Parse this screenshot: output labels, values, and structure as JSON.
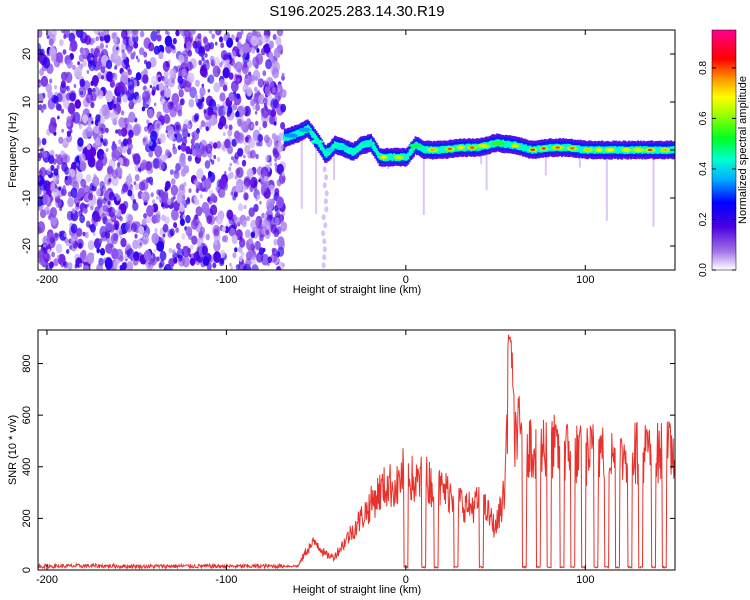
{
  "title": "S196.2025.283.14.30.R19",
  "colors": {
    "snr_line": "#e8312b",
    "spectrogram_noise": "#8a3ee8",
    "axis": "#000000"
  },
  "chart_data": [
    {
      "type": "heatmap",
      "xlabel": "Height of straight line (km)",
      "ylabel": "Frequency (Hz)",
      "xlim": [
        -205,
        150
      ],
      "ylim": [
        -25,
        25
      ],
      "x_ticks": [
        -200,
        -100,
        0,
        100
      ],
      "y_ticks": [
        -20,
        -10,
        0,
        10,
        20
      ],
      "colorbar": {
        "label": "Normalized spectral amplitude",
        "range": [
          0,
          0.95
        ],
        "ticks": [
          "0.0",
          "0.2",
          "0.4",
          "0.6",
          "0.8"
        ],
        "tick_values": [
          0.0,
          0.2,
          0.4,
          0.6,
          0.8
        ],
        "colormap": "rainbow (white → purple → blue → cyan → green → yellow → red → magenta)"
      },
      "noise_region_x": [
        -205,
        -68
      ],
      "ridge": {
        "x": [
          -68,
          -60,
          -55,
          -50,
          -45,
          -40,
          -35,
          -30,
          -25,
          -20,
          -15,
          -10,
          -5,
          0,
          5,
          10,
          15,
          20,
          30,
          40,
          50,
          60,
          70,
          80,
          90,
          100,
          110,
          120,
          130,
          140,
          150
        ],
        "freq_hz": [
          2.5,
          3.5,
          4.5,
          2.0,
          -1.0,
          1.0,
          0.5,
          -0.5,
          1.0,
          1.5,
          -1.5,
          -1.5,
          -1.5,
          -1.5,
          1.0,
          0.0,
          0.0,
          0.0,
          0.5,
          0.5,
          1.5,
          1.0,
          0.0,
          0.5,
          0.5,
          0.0,
          0.0,
          0.0,
          0.0,
          0.0,
          0.0
        ],
        "amplitude": [
          0.45,
          0.45,
          0.45,
          0.55,
          0.55,
          0.55,
          0.55,
          0.55,
          0.55,
          0.6,
          0.75,
          0.85,
          0.85,
          0.8,
          0.6,
          0.9,
          0.9,
          0.9,
          0.9,
          0.9,
          0.7,
          0.9,
          0.9,
          0.9,
          0.9,
          0.9,
          0.9,
          0.9,
          0.9,
          0.9,
          0.9
        ]
      }
    },
    {
      "type": "line",
      "xlabel": "Height of straight line (km)",
      "ylabel": "SNR (10 * v/v)",
      "xlim": [
        -205,
        150
      ],
      "ylim": [
        0,
        930
      ],
      "x_ticks": [
        -200,
        -100,
        0,
        100
      ],
      "y_ticks": [
        0,
        200,
        400,
        600,
        800
      ],
      "series": [
        {
          "x": [
            -205,
            -190,
            -175,
            -160,
            -145,
            -130,
            -115,
            -100,
            -85,
            -70,
            -60,
            -55,
            -50,
            -45,
            -40,
            -35,
            -30,
            -25,
            -20,
            -15,
            -10,
            -5,
            0,
            5,
            10,
            15,
            20,
            25,
            30,
            35,
            40,
            45,
            50,
            55,
            58,
            60,
            65,
            70,
            75,
            80,
            85,
            90,
            95,
            100,
            105,
            110,
            115,
            120,
            125,
            130,
            135,
            140,
            145,
            150
          ],
          "y": [
            15,
            15,
            16,
            15,
            14,
            15,
            15,
            14,
            15,
            15,
            15,
            80,
            110,
            60,
            50,
            100,
            150,
            200,
            250,
            300,
            330,
            320,
            400,
            330,
            360,
            330,
            310,
            300,
            270,
            240,
            260,
            230,
            160,
            300,
            900,
            550,
            520,
            480,
            480,
            490,
            460,
            460,
            450,
            440,
            460,
            460,
            440,
            430,
            470,
            450,
            460,
            450,
            460,
            450
          ],
          "dropouts_x": [
            0,
            10,
            17,
            28,
            42,
            66,
            74,
            80,
            87,
            93,
            99,
            106,
            112,
            118,
            125,
            131,
            138,
            144
          ]
        }
      ]
    }
  ]
}
